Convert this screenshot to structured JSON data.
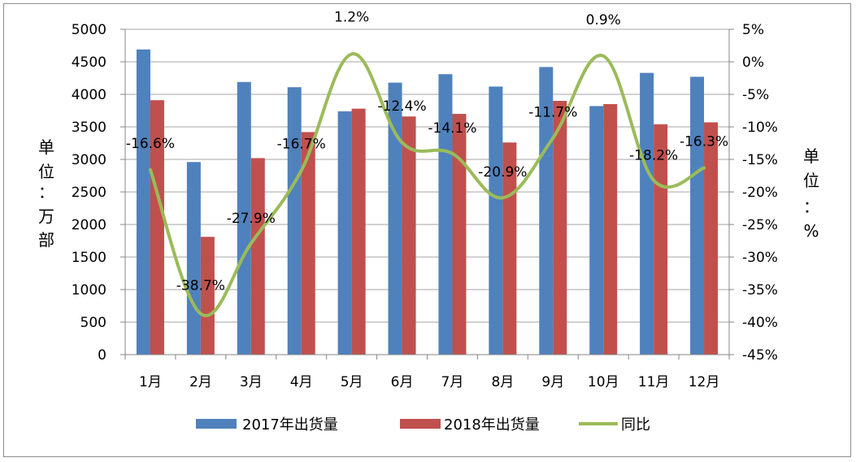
{
  "chart_data": {
    "type": "bar+line",
    "categories": [
      "1月",
      "2月",
      "3月",
      "4月",
      "5月",
      "6月",
      "7月",
      "8月",
      "9月",
      "10月",
      "11月",
      "12月"
    ],
    "series": [
      {
        "name": "2017年出货量",
        "type": "bar",
        "axis": "left",
        "color": "#4f81bd",
        "values": [
          4690,
          2960,
          4190,
          4110,
          3740,
          4180,
          4310,
          4120,
          4420,
          3820,
          4330,
          4270
        ]
      },
      {
        "name": "2018年出货量",
        "type": "bar",
        "axis": "left",
        "color": "#c0504d",
        "values": [
          3910,
          1810,
          3020,
          3420,
          3780,
          3660,
          3700,
          3260,
          3900,
          3850,
          3540,
          3570
        ]
      },
      {
        "name": "同比",
        "type": "line",
        "axis": "right",
        "color": "#9bbb59",
        "values": [
          -16.6,
          -38.7,
          -27.9,
          -16.7,
          1.2,
          -12.4,
          -14.1,
          -20.9,
          -11.7,
          0.9,
          -18.2,
          -16.3
        ],
        "labels": [
          "-16.6%",
          "-38.7%",
          "-27.9%",
          "-16.7%",
          "1.2%",
          "-12.4%",
          "-14.1%",
          "-20.9%",
          "-11.7%",
          "0.9%",
          "-18.2%",
          "-16.3%"
        ]
      }
    ],
    "left_axis": {
      "min": 0,
      "max": 5000,
      "step": 500,
      "ticks": [
        "0",
        "500",
        "1000",
        "1500",
        "2000",
        "2500",
        "3000",
        "3500",
        "4000",
        "4500",
        "5000"
      ],
      "title_chars": [
        "单",
        "位",
        "：",
        "万",
        "部"
      ]
    },
    "right_axis": {
      "min": -45,
      "max": 5,
      "step": 5,
      "ticks": [
        "-45%",
        "-40%",
        "-35%",
        "-30%",
        "-25%",
        "-20%",
        "-15%",
        "-10%",
        "-5%",
        "0%",
        "5%"
      ],
      "title_chars": [
        "单",
        "位",
        "：",
        "%"
      ]
    },
    "legend_position": "bottom",
    "gridlines": true
  }
}
